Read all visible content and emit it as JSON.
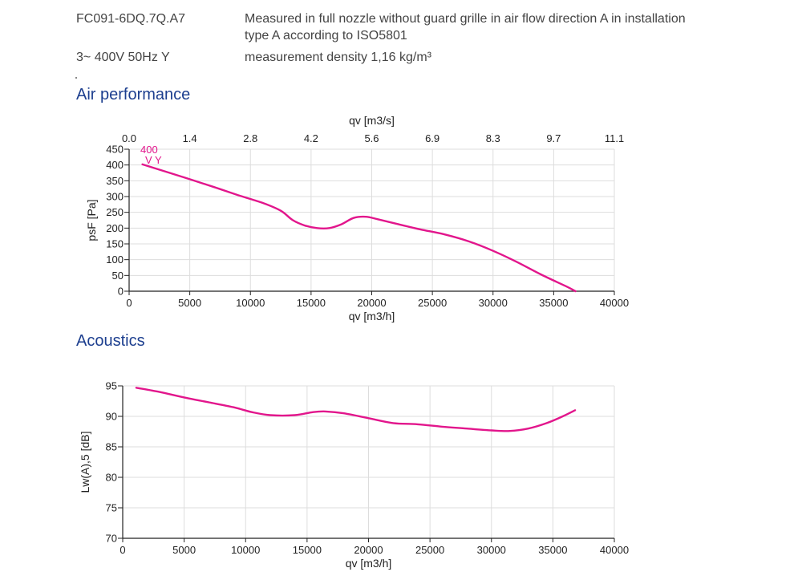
{
  "header": {
    "model": "FC091-6DQ.7Q.A7",
    "voltage": "3~ 400V 50Hz Y",
    "measurement_line1": "Measured in full nozzle without guard grille in air flow direction A in installation",
    "measurement_line2": "type A according to ISO5801",
    "density": "measurement density 1,16 kg/m³"
  },
  "sections": {
    "air_title": "Air performance",
    "acoustics_title": "Acoustics"
  },
  "colors": {
    "curve": "#e2168c",
    "grid": "#dddddd",
    "heading": "#1d3f8f"
  },
  "chart_data": [
    {
      "type": "line",
      "title": "Air performance",
      "xlabel": "qv [m3/h]",
      "ylabel": "psF [Pa]",
      "x2label": "qv [m3/s]",
      "xlim": [
        0,
        40000
      ],
      "ylim": [
        0,
        450
      ],
      "xticks": [
        0,
        5000,
        10000,
        15000,
        20000,
        25000,
        30000,
        35000,
        40000
      ],
      "yticks": [
        0,
        50,
        100,
        150,
        200,
        250,
        300,
        350,
        400,
        450
      ],
      "x2ticks": [
        "0.0",
        "1.4",
        "2.8",
        "4.2",
        "5.6",
        "6.9",
        "8.3",
        "9.7",
        "11.1"
      ],
      "grid": true,
      "curve_labels": [
        "400",
        "V Y"
      ],
      "series": [
        {
          "name": "",
          "x": [
            1100,
            3000,
            5000,
            7000,
            9000,
            11000,
            12500,
            13500,
            14500,
            15500,
            16500,
            17500,
            18500,
            19500,
            20500,
            22000,
            24000,
            26000,
            28000,
            30000,
            32000,
            34000,
            36000,
            36800
          ],
          "y": [
            402,
            379,
            355,
            330,
            304,
            280,
            255,
            225,
            208,
            200,
            200,
            212,
            232,
            236,
            228,
            214,
            196,
            180,
            158,
            128,
            92,
            52,
            16,
            0
          ]
        }
      ]
    },
    {
      "type": "line",
      "title": "Acoustics",
      "xlabel": "qv [m3/h]",
      "ylabel": "Lw(A),5 [dB]",
      "xlim": [
        0,
        40000
      ],
      "ylim": [
        70,
        95
      ],
      "xticks": [
        0,
        5000,
        10000,
        15000,
        20000,
        25000,
        30000,
        35000,
        40000
      ],
      "yticks": [
        70,
        75,
        80,
        85,
        90,
        95
      ],
      "grid": true,
      "series": [
        {
          "name": "",
          "x": [
            1100,
            3000,
            5000,
            7000,
            9000,
            10500,
            12000,
            14000,
            15500,
            16500,
            18000,
            20000,
            22000,
            24000,
            26000,
            28000,
            30000,
            31500,
            33000,
            34500,
            35800,
            36800
          ],
          "y": [
            94.7,
            94.0,
            93.1,
            92.3,
            91.5,
            90.7,
            90.2,
            90.2,
            90.7,
            90.8,
            90.5,
            89.7,
            88.9,
            88.7,
            88.3,
            88.0,
            87.7,
            87.6,
            88.0,
            88.9,
            90.0,
            91.0
          ]
        }
      ]
    }
  ]
}
